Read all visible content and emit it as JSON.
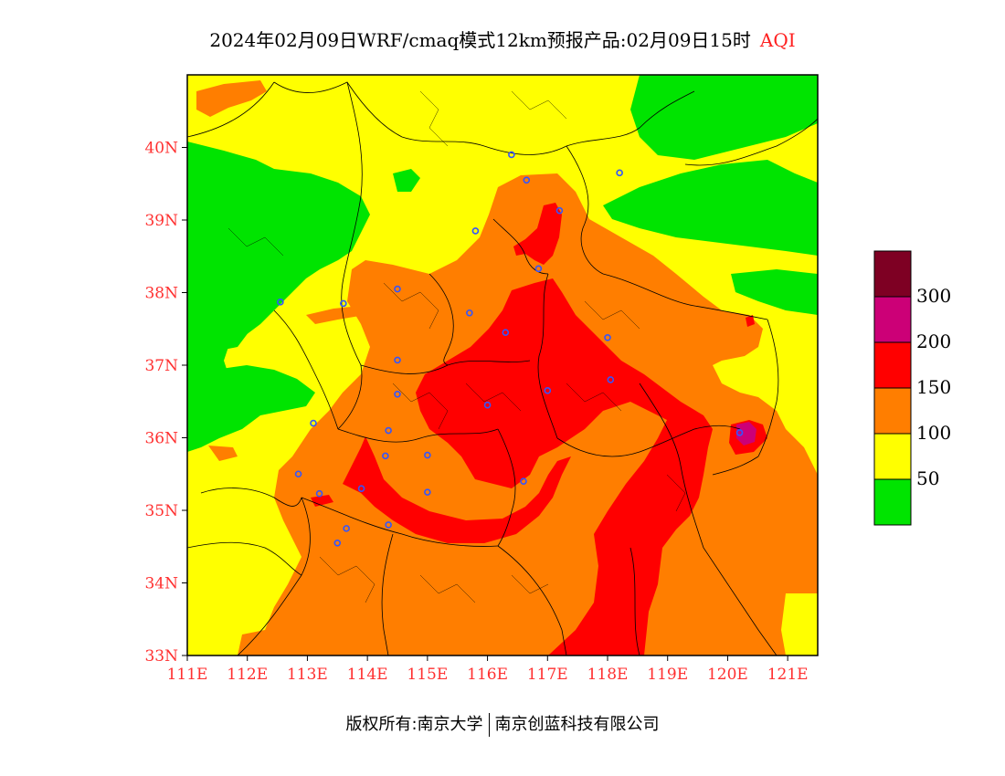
{
  "title": {
    "main": "2024年02月09日WRF/cmaq模式12km预报产品:02月09日15时",
    "variable": "AQI"
  },
  "map": {
    "lon_ticks": [
      "111E",
      "112E",
      "113E",
      "114E",
      "115E",
      "116E",
      "117E",
      "118E",
      "119E",
      "120E",
      "121E"
    ],
    "lat_ticks": [
      "33N",
      "34N",
      "35N",
      "36N",
      "37N",
      "38N",
      "39N",
      "40N"
    ],
    "lon_range": [
      111,
      121.5
    ],
    "lat_range": [
      33,
      41
    ],
    "colors": {
      "green": "#00e400",
      "yellow": "#ffff00",
      "orange": "#ff7e00",
      "red": "#ff0000",
      "purple": "#cc0077",
      "maroon": "#7e0023",
      "station_marker": "#3355ff"
    }
  },
  "colorbar": {
    "levels": [
      {
        "label": "",
        "color": "#7e0023"
      },
      {
        "label": "300",
        "color": "#cc0077"
      },
      {
        "label": "200",
        "color": "#ff0000"
      },
      {
        "label": "150",
        "color": "#ff7e00"
      },
      {
        "label": "100",
        "color": "#ffff00"
      },
      {
        "label": "50",
        "color": "#00e400"
      }
    ]
  },
  "footer": {
    "left": "版权所有:南京大学",
    "right": "南京创蓝科技有限公司"
  }
}
